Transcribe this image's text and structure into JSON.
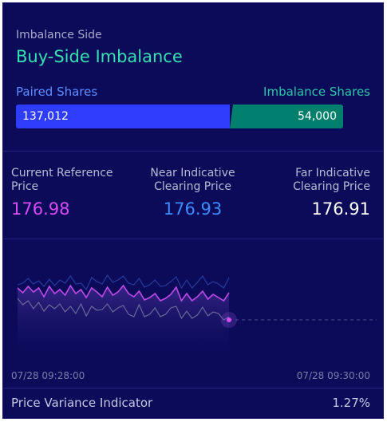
{
  "imbalance": {
    "section_label": "Imbalance Side",
    "side": "Buy-Side Imbalance",
    "paired_label": "Paired Shares",
    "imbalance_label": "Imbalance Shares",
    "paired_value": "137,012",
    "imbalance_value": "54,000",
    "colors": {
      "paired": "#2e3dfb",
      "imbalance": "#00806c",
      "title": "#36e1b1"
    }
  },
  "prices": {
    "current_reference_label": "Current Reference Price",
    "current_reference_value": "176.98",
    "near_indicative_label": "Near Indicative Clearing Price",
    "near_indicative_value": "176.93",
    "far_indicative_label": "Far Indicative Clearing Price",
    "far_indicative_value": "176.91"
  },
  "timeline": {
    "start": "07/28 09:28:00",
    "end": "07/28 09:30:00"
  },
  "price_variance": {
    "label": "Price Variance Indicator",
    "value": "1.27%"
  },
  "chart_data": {
    "type": "line",
    "series": [
      {
        "color": "#2a3fa0",
        "values": [
          18,
          16,
          10,
          17,
          13,
          20,
          11,
          19,
          12,
          16,
          7,
          17,
          16,
          24,
          9,
          14,
          17,
          6,
          15,
          12,
          7,
          16,
          18,
          10,
          21,
          18,
          12,
          20,
          19,
          14,
          8,
          22,
          12,
          22,
          15,
          7,
          18,
          14,
          17,
          22,
          9
        ]
      },
      {
        "color": "#c04ae8",
        "values": [
          22,
          28,
          20,
          27,
          22,
          33,
          20,
          29,
          24,
          31,
          19,
          29,
          24,
          34,
          22,
          27,
          33,
          21,
          31,
          27,
          19,
          29,
          33,
          26,
          37,
          34,
          29,
          38,
          35,
          30,
          21,
          38,
          29,
          38,
          33,
          26,
          36,
          30,
          34,
          38,
          28
        ]
      },
      {
        "color": "#6d6f9a",
        "values": [
          35,
          43,
          38,
          48,
          40,
          51,
          43,
          48,
          42,
          52,
          45,
          54,
          42,
          57,
          45,
          50,
          49,
          42,
          52,
          47,
          44,
          55,
          58,
          43,
          58,
          55,
          47,
          58,
          55,
          47,
          45,
          60,
          51,
          60,
          56,
          46,
          57,
          52,
          54,
          62,
          58
        ]
      }
    ]
  }
}
